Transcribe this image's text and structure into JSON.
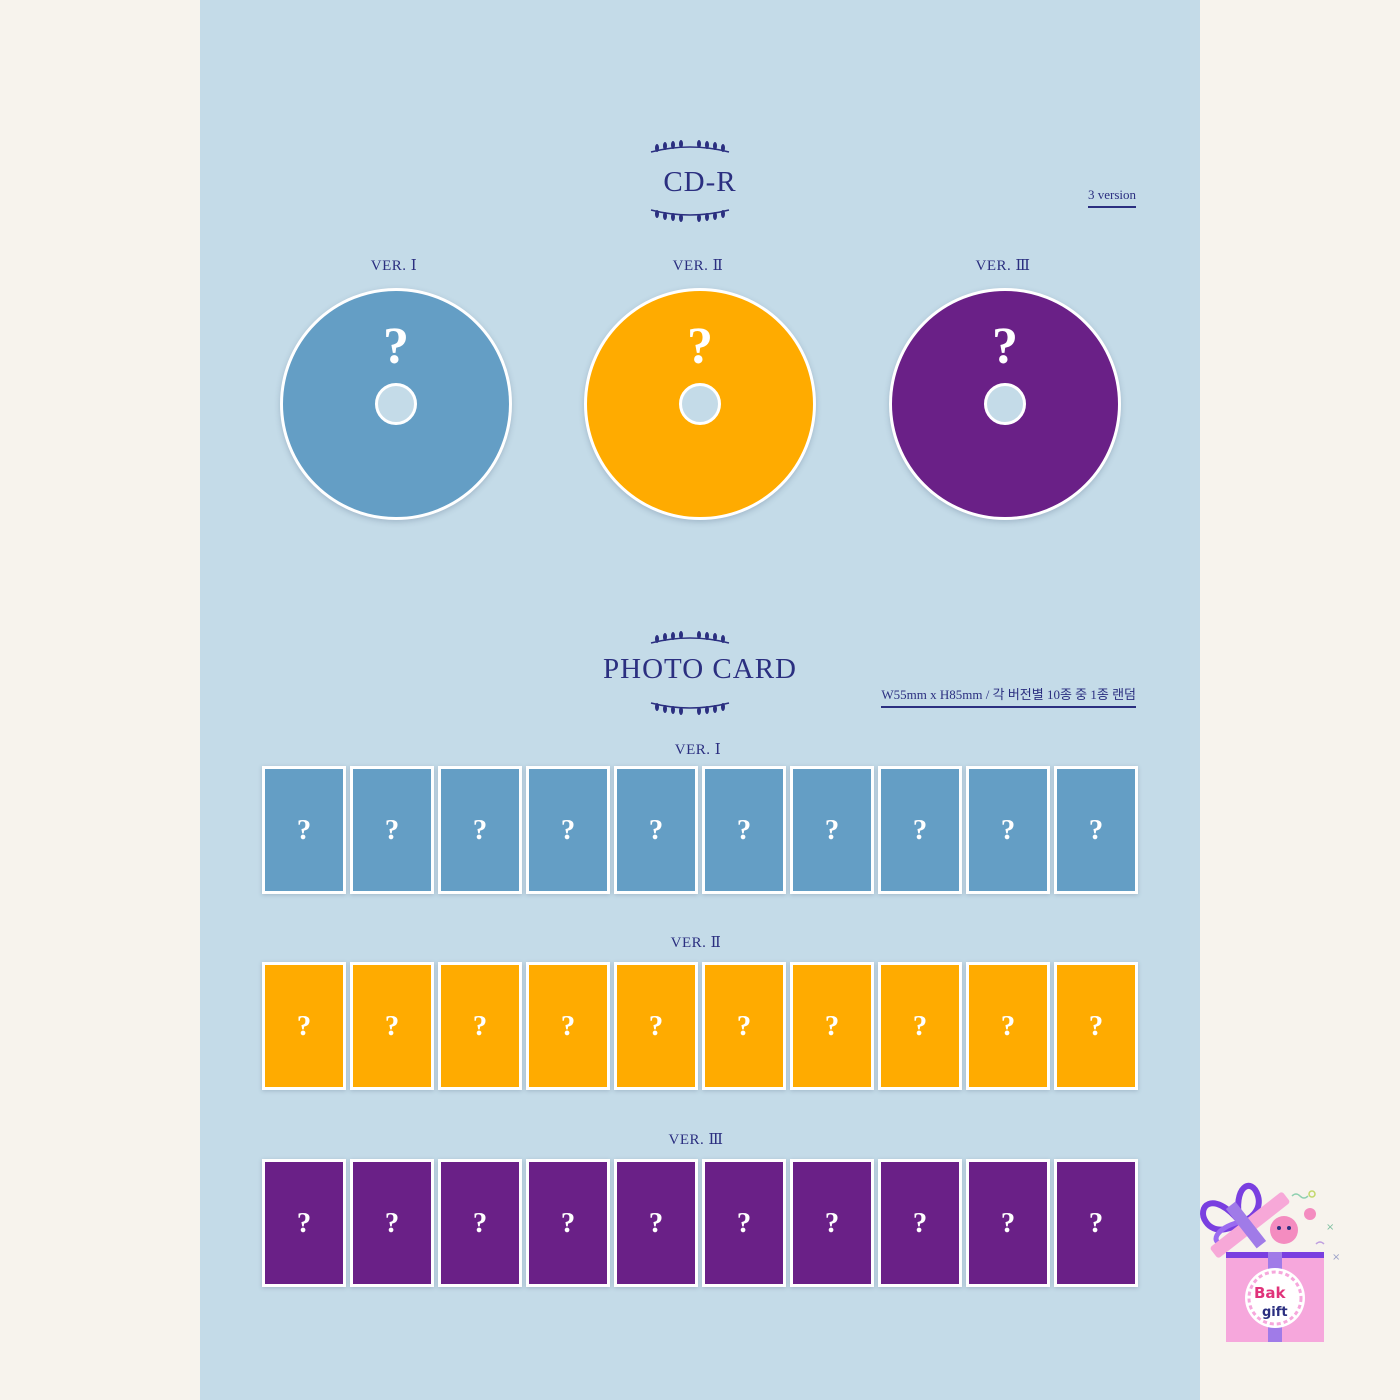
{
  "cd_section": {
    "title": "CD-R",
    "note": "3 version",
    "versions": [
      {
        "label": "VER. Ⅰ",
        "symbol": "?",
        "color": "#649ec5"
      },
      {
        "label": "VER. Ⅱ",
        "symbol": "?",
        "color": "#ffab00"
      },
      {
        "label": "VER. Ⅲ",
        "symbol": "?",
        "color": "#6a2087"
      }
    ]
  },
  "photocard_section": {
    "title": "PHOTO CARD",
    "note": "W55mm x H85mm / 각 버전별 10종 중 1종 랜덤",
    "rows": [
      {
        "label": "VER. Ⅰ",
        "color": "#649ec5",
        "cards": [
          "?",
          "?",
          "?",
          "?",
          "?",
          "?",
          "?",
          "?",
          "?",
          "?"
        ]
      },
      {
        "label": "VER. Ⅱ",
        "color": "#ffab00",
        "cards": [
          "?",
          "?",
          "?",
          "?",
          "?",
          "?",
          "?",
          "?",
          "?",
          "?"
        ]
      },
      {
        "label": "VER. Ⅲ",
        "color": "#6a2087",
        "cards": [
          "?",
          "?",
          "?",
          "?",
          "?",
          "?",
          "?",
          "?",
          "?",
          "?"
        ]
      }
    ]
  },
  "colors": {
    "panel_background": "#c4dbe8",
    "page_background": "#f7f3ed",
    "text_accent": "#2b2f80"
  },
  "logo": {
    "text": "Bak gift",
    "icon": "gift-box-logo"
  }
}
